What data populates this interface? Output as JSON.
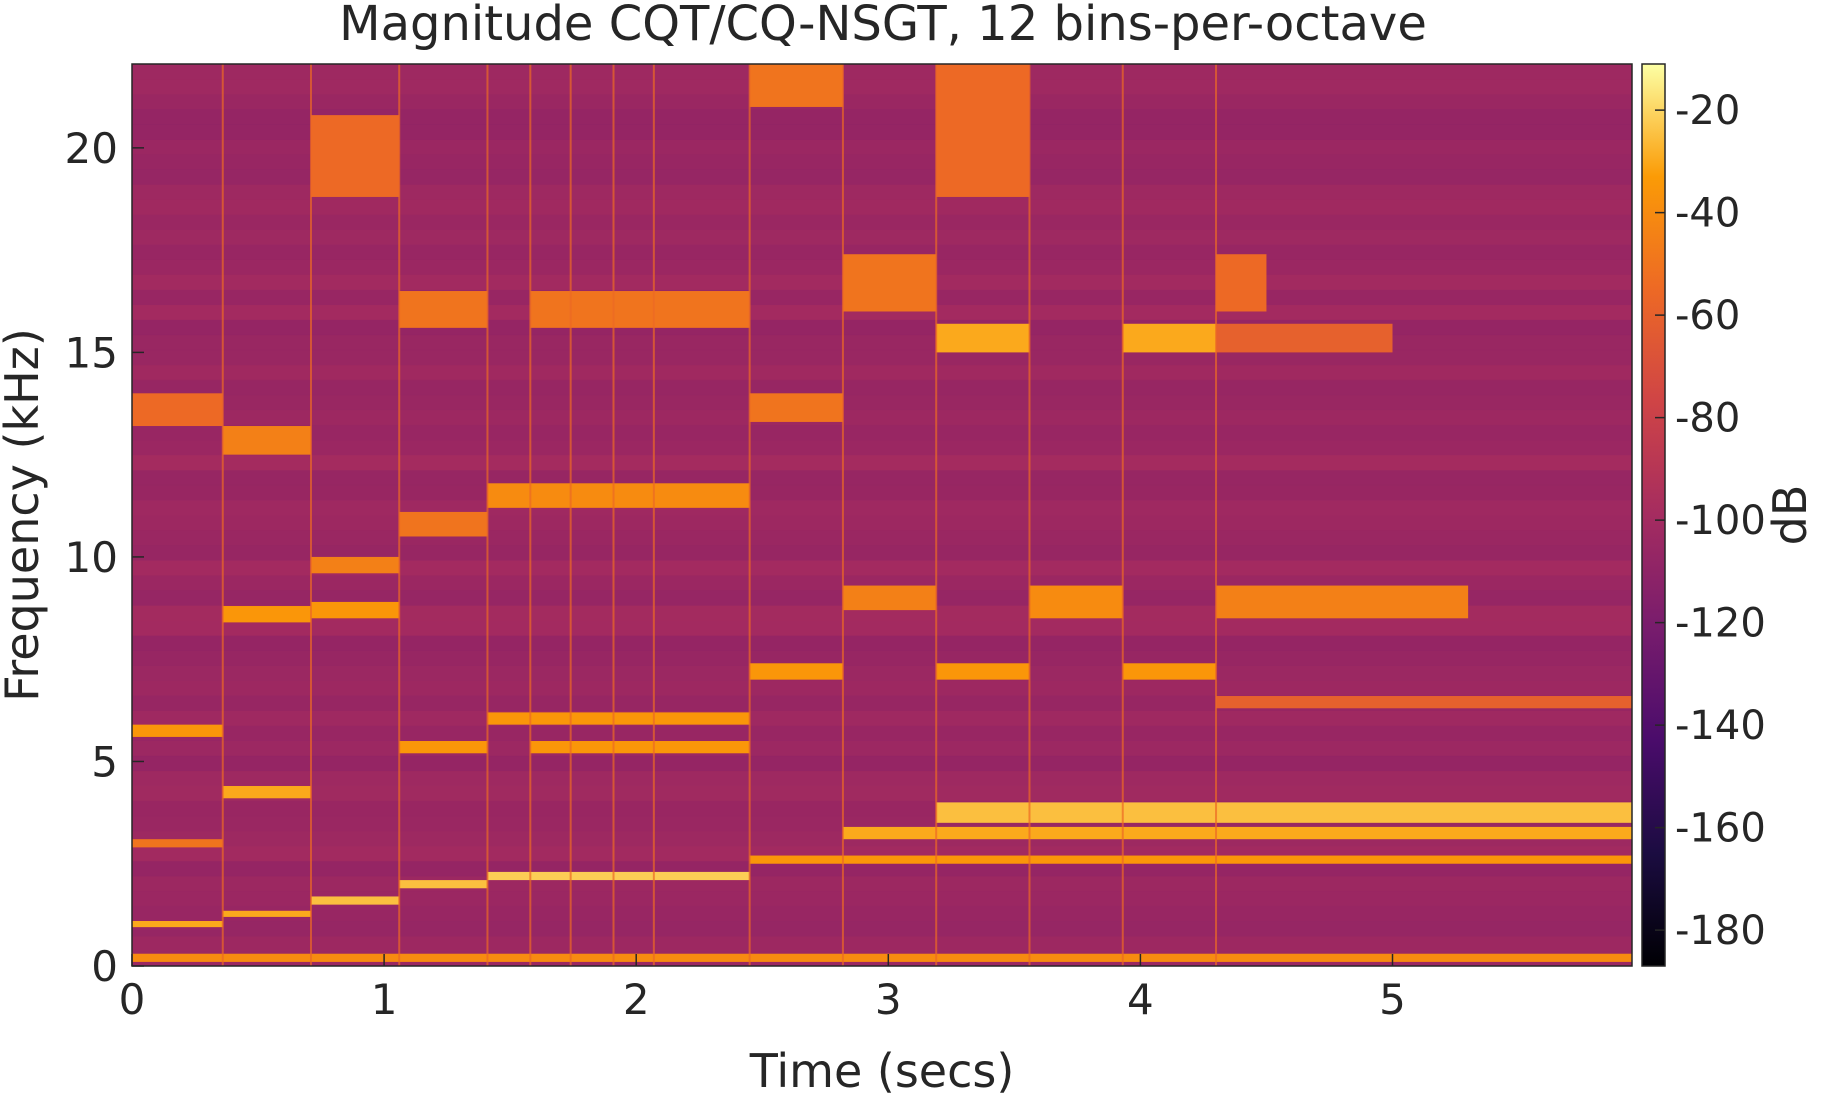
{
  "chart_data": {
    "type": "heatmap",
    "title": "Magnitude CQT/CQ-NSGT, 12 bins-per-octave",
    "xlabel": "Time (secs)",
    "ylabel": "Frequency (kHz)",
    "xlim": [
      0,
      5.95
    ],
    "ylim": [
      0,
      22.05
    ],
    "x_ticks": [
      0,
      1,
      2,
      3,
      4,
      5
    ],
    "y_ticks": [
      0,
      5,
      10,
      15,
      20
    ],
    "grid": false,
    "colorbar": {
      "label": "dB",
      "range": [
        -187,
        -11
      ],
      "ticks": [
        -20,
        -40,
        -60,
        -80,
        -100,
        -120,
        -140,
        -160,
        -180
      ],
      "colormap": "inferno",
      "position": "right"
    },
    "background_level_db": -105,
    "note_onsets_secs": [
      0,
      0.36,
      0.71,
      1.06,
      1.41,
      1.58,
      1.74,
      1.91,
      2.07,
      2.45,
      2.82,
      3.19,
      3.56,
      3.93,
      4.3
    ],
    "bands": [
      {
        "t0": 0,
        "t1": 0.36,
        "f0": 5.6,
        "f1": 5.9,
        "db": -35
      },
      {
        "t0": 0,
        "t1": 0.36,
        "f0": 13.2,
        "f1": 14.0,
        "db": -55
      },
      {
        "t0": 0,
        "t1": 0.36,
        "f0": 2.9,
        "f1": 3.1,
        "db": -50
      },
      {
        "t0": 0,
        "t1": 0.36,
        "f0": 0.95,
        "f1": 1.1,
        "db": -30
      },
      {
        "t0": 0.36,
        "t1": 0.71,
        "f0": 12.5,
        "f1": 13.2,
        "db": -45
      },
      {
        "t0": 0.36,
        "t1": 0.71,
        "f0": 8.4,
        "f1": 8.8,
        "db": -35
      },
      {
        "t0": 0.36,
        "t1": 0.71,
        "f0": 4.1,
        "f1": 4.4,
        "db": -30
      },
      {
        "t0": 0.36,
        "t1": 0.71,
        "f0": 1.2,
        "f1": 1.35,
        "db": -30
      },
      {
        "t0": 0.71,
        "t1": 1.06,
        "f0": 18.8,
        "f1": 20.8,
        "db": -55
      },
      {
        "t0": 0.71,
        "t1": 1.06,
        "f0": 8.5,
        "f1": 8.9,
        "db": -35
      },
      {
        "t0": 0.71,
        "t1": 1.06,
        "f0": 9.6,
        "f1": 10.0,
        "db": -45
      },
      {
        "t0": 0.71,
        "t1": 1.06,
        "f0": 1.5,
        "f1": 1.7,
        "db": -25
      },
      {
        "t0": 1.06,
        "t1": 1.41,
        "f0": 15.6,
        "f1": 16.5,
        "db": -50
      },
      {
        "t0": 1.06,
        "t1": 1.41,
        "f0": 10.5,
        "f1": 11.1,
        "db": -50
      },
      {
        "t0": 1.06,
        "t1": 1.41,
        "f0": 5.2,
        "f1": 5.5,
        "db": -35
      },
      {
        "t0": 1.06,
        "t1": 1.41,
        "f0": 1.9,
        "f1": 2.1,
        "db": -25
      },
      {
        "t0": 1.41,
        "t1": 2.45,
        "f0": 11.2,
        "f1": 11.8,
        "db": -40
      },
      {
        "t0": 1.41,
        "t1": 2.45,
        "f0": 5.9,
        "f1": 6.2,
        "db": -35
      },
      {
        "t0": 1.58,
        "t1": 2.45,
        "f0": 15.6,
        "f1": 16.5,
        "db": -50
      },
      {
        "t0": 1.58,
        "t1": 2.45,
        "f0": 5.2,
        "f1": 5.5,
        "db": -35
      },
      {
        "t0": 1.41,
        "t1": 2.45,
        "f0": 2.1,
        "f1": 2.3,
        "db": -22
      },
      {
        "t0": 2.45,
        "t1": 2.82,
        "f0": 21.0,
        "f1": 22.05,
        "db": -50
      },
      {
        "t0": 2.45,
        "t1": 2.82,
        "f0": 7.0,
        "f1": 7.4,
        "db": -35
      },
      {
        "t0": 2.45,
        "t1": 2.82,
        "f0": 13.3,
        "f1": 14.0,
        "db": -50
      },
      {
        "t0": 2.45,
        "t1": 5.95,
        "f0": 2.5,
        "f1": 2.7,
        "db": -35
      },
      {
        "t0": 2.82,
        "t1": 3.19,
        "f0": 8.7,
        "f1": 9.3,
        "db": -45
      },
      {
        "t0": 2.82,
        "t1": 3.19,
        "f0": 16.0,
        "f1": 17.4,
        "db": -50
      },
      {
        "t0": 3.19,
        "t1": 3.56,
        "f0": 15.0,
        "f1": 15.7,
        "db": -30
      },
      {
        "t0": 3.19,
        "t1": 5.95,
        "f0": 3.5,
        "f1": 4.0,
        "db": -25
      },
      {
        "t0": 2.82,
        "t1": 5.95,
        "f0": 3.1,
        "f1": 3.4,
        "db": -30
      },
      {
        "t0": 3.19,
        "t1": 3.56,
        "f0": 7.0,
        "f1": 7.4,
        "db": -35
      },
      {
        "t0": 3.19,
        "t1": 3.56,
        "f0": 18.8,
        "f1": 22.05,
        "db": -55
      },
      {
        "t0": 3.56,
        "t1": 3.93,
        "f0": 8.5,
        "f1": 9.3,
        "db": -40
      },
      {
        "t0": 3.93,
        "t1": 4.3,
        "f0": 15.0,
        "f1": 15.7,
        "db": -30
      },
      {
        "t0": 3.93,
        "t1": 4.3,
        "f0": 7.0,
        "f1": 7.4,
        "db": -35
      },
      {
        "t0": 4.3,
        "t1": 5.3,
        "f0": 8.5,
        "f1": 9.3,
        "db": -45
      },
      {
        "t0": 4.3,
        "t1": 5.0,
        "f0": 15.0,
        "f1": 15.7,
        "db": -60
      },
      {
        "t0": 4.3,
        "t1": 4.5,
        "f0": 16.0,
        "f1": 17.4,
        "db": -55
      },
      {
        "t0": 4.3,
        "t1": 5.95,
        "f0": 6.3,
        "f1": 6.6,
        "db": -60
      },
      {
        "t0": 0,
        "t1": 5.95,
        "f0": 0.1,
        "f1": 0.3,
        "db": -40
      }
    ]
  }
}
